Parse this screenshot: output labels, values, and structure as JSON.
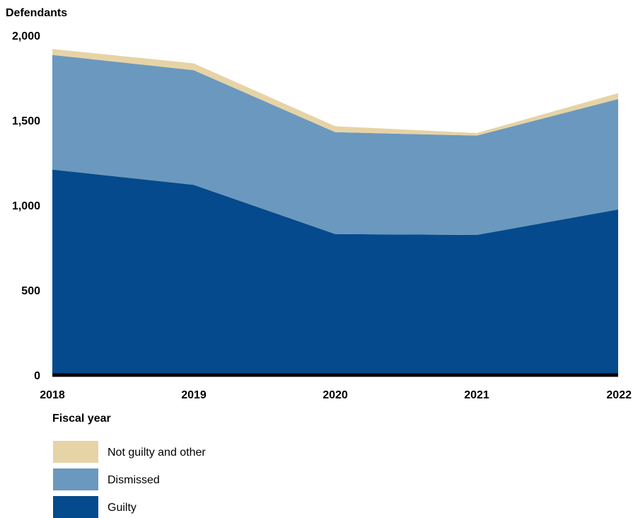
{
  "chart_data": {
    "type": "area",
    "stacked": true,
    "ylabel": "Defendants",
    "xlabel": "Fiscal year",
    "x": [
      "2018",
      "2019",
      "2020",
      "2021",
      "2022"
    ],
    "ylim": [
      0,
      2000
    ],
    "yticks": [
      0,
      500,
      1000,
      1500,
      2000
    ],
    "ytick_labels": [
      "0",
      "500",
      "1,000",
      "1,500",
      "2,000"
    ],
    "series": [
      {
        "name": "Guilty",
        "values": [
          1210,
          1120,
          830,
          825,
          975
        ],
        "color": "#054a8c"
      },
      {
        "name": "Dismissed",
        "values": [
          675,
          675,
          600,
          585,
          650
        ],
        "color": "#6b98be"
      },
      {
        "name": "Not guilty and other",
        "values": [
          35,
          40,
          35,
          15,
          35
        ],
        "color": "#e6d3a6"
      }
    ],
    "legend": {
      "placement": "bottom-left",
      "order": [
        "Not guilty and other",
        "Dismissed",
        "Guilty"
      ]
    },
    "grid": false
  }
}
